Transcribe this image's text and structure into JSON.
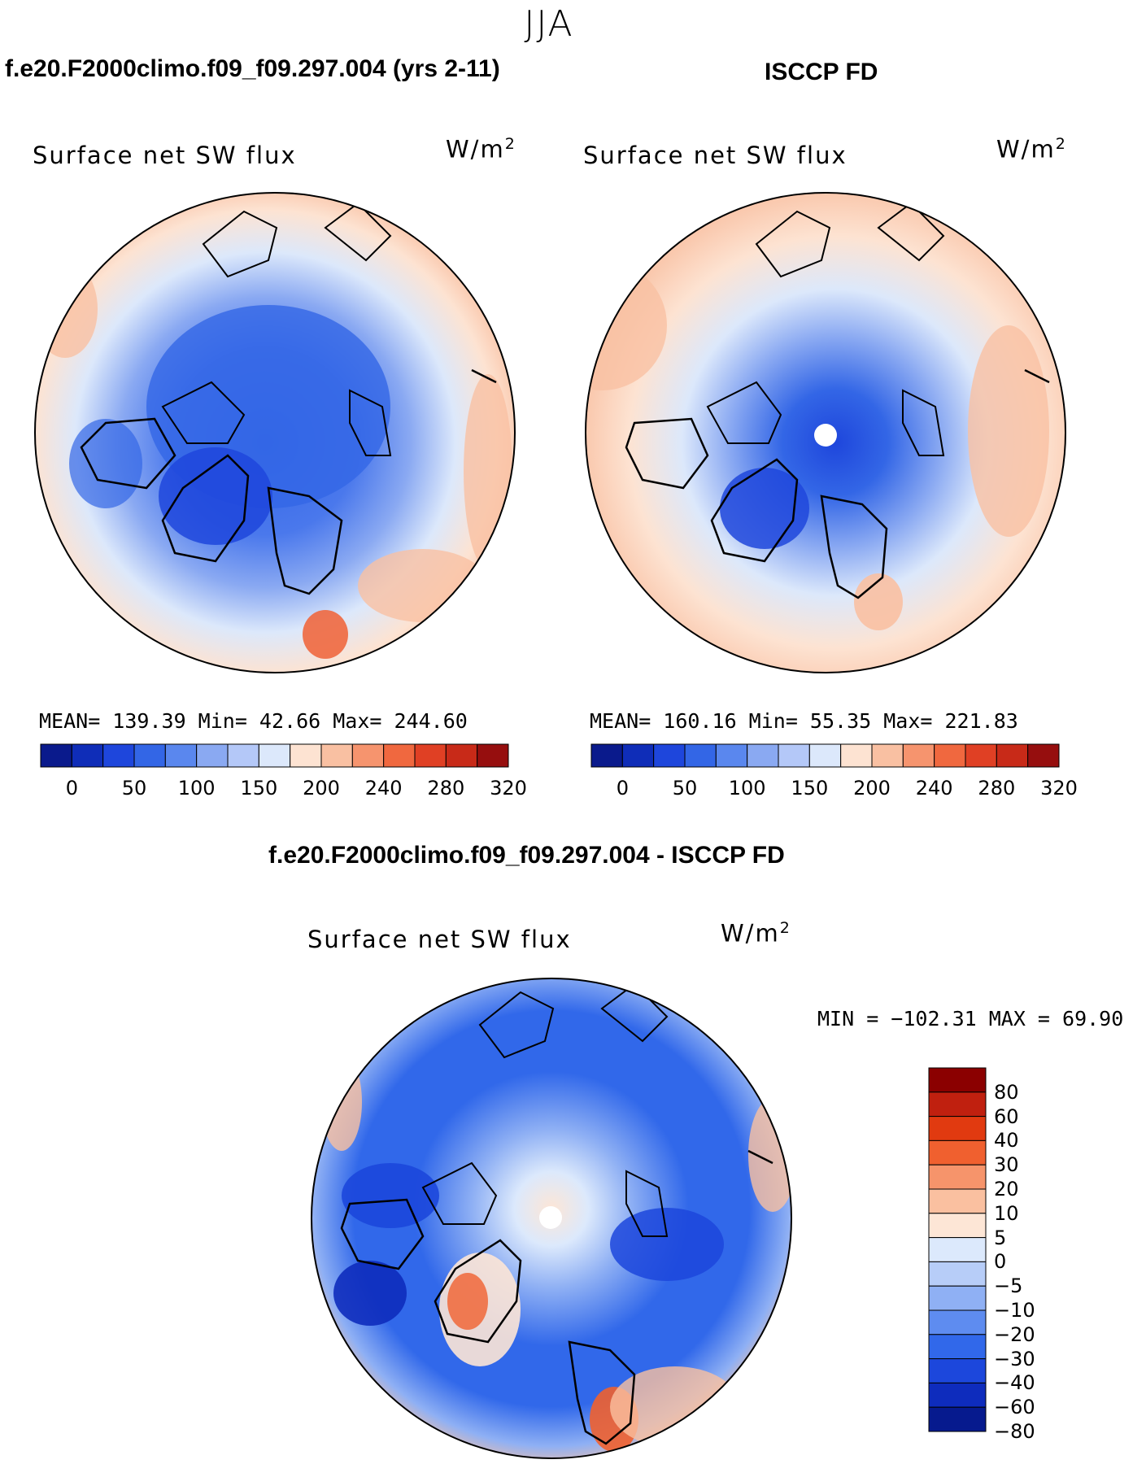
{
  "page": {
    "season": "JJA",
    "model_title": "f.e20.F2000climo.f09_f09.297.004 (yrs 2-11)",
    "obs_title": "ISCCP FD",
    "diff_title": "f.e20.F2000climo.f09_f09.297.004 - ISCCP FD"
  },
  "chart_data": [
    {
      "type": "heatmap",
      "projection": "north polar stereographic",
      "panel": "model",
      "title": "f.e20.F2000climo.f09_f09.297.004 (yrs 2-11)",
      "label": "Surface net SW flux",
      "units": "W/m2",
      "stats": {
        "mean": "139.39",
        "min": "42.66",
        "max": "244.60"
      },
      "stats_text": "MEAN=  139.39   Min=   42.66   Max=  244.60",
      "colorbar": {
        "colors": [
          "#0a1a8c",
          "#0f2db8",
          "#1e46dc",
          "#3366e6",
          "#5a87ee",
          "#8aa9f2",
          "#b4c8f8",
          "#dce8fb",
          "#fde3d2",
          "#f9c0a2",
          "#f6946e",
          "#f0683f",
          "#e04024",
          "#c82a18",
          "#960e0e"
        ],
        "tick_labels": [
          "0",
          "50",
          "100",
          "150",
          "200",
          "240",
          "280",
          "320"
        ]
      }
    },
    {
      "type": "heatmap",
      "projection": "north polar stereographic",
      "panel": "observations",
      "title": "ISCCP FD",
      "label": "Surface net SW flux",
      "units": "W/m2",
      "stats": {
        "mean": "160.16",
        "min": "55.35",
        "max": "221.83"
      },
      "stats_text": "MEAN=  160.16   Min=   55.35   Max=  221.83",
      "colorbar": {
        "colors": [
          "#0a1a8c",
          "#0f2db8",
          "#1e46dc",
          "#3366e6",
          "#5a87ee",
          "#8aa9f2",
          "#b4c8f8",
          "#dce8fb",
          "#fde3d2",
          "#f9c0a2",
          "#f6946e",
          "#f0683f",
          "#e04024",
          "#c82a18",
          "#960e0e"
        ],
        "tick_labels": [
          "0",
          "50",
          "100",
          "150",
          "200",
          "240",
          "280",
          "320"
        ]
      }
    },
    {
      "type": "heatmap",
      "projection": "north polar stereographic",
      "panel": "difference",
      "title": "f.e20.F2000climo.f09_f09.297.004 - ISCCP FD",
      "label": "Surface net SW flux",
      "units": "W/m2",
      "stats": {
        "min": "-102.31",
        "max": "69.90"
      },
      "stats_text": "MIN = −102.31  MAX =   69.90",
      "colorbar": {
        "orientation": "vertical",
        "colors": [
          "#8b0000",
          "#c0200f",
          "#e13a10",
          "#f0602f",
          "#f6946b",
          "#fac0a0",
          "#fde6d6",
          "#dce9fc",
          "#b7cdf8",
          "#8fb0f4",
          "#5e8cf0",
          "#3168ea",
          "#1c47dc",
          "#0e2cbd",
          "#061a8e"
        ],
        "tick_labels": [
          "80",
          "60",
          "40",
          "30",
          "20",
          "10",
          "5",
          "0",
          "−5",
          "−10",
          "−20",
          "−30",
          "−40",
          "−60",
          "−80"
        ]
      }
    }
  ]
}
